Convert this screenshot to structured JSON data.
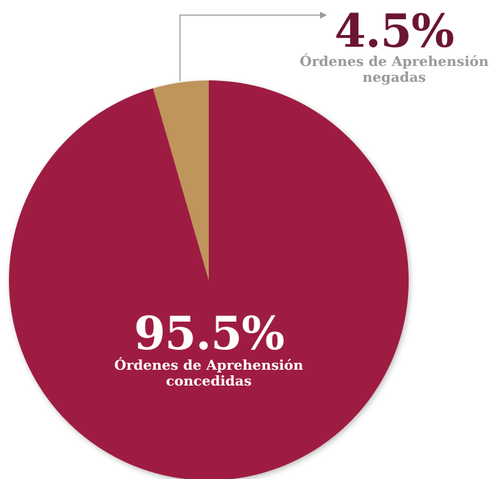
{
  "chart_data": {
    "type": "pie",
    "categories": [
      "Órdenes de Aprehensión concedidas",
      "Órdenes de Aprehensión negadas"
    ],
    "values": [
      95.5,
      4.5
    ],
    "value_labels": [
      "95.5%",
      "4.5%"
    ],
    "colors": [
      "#9e1c42",
      "#bf955b"
    ]
  }
}
